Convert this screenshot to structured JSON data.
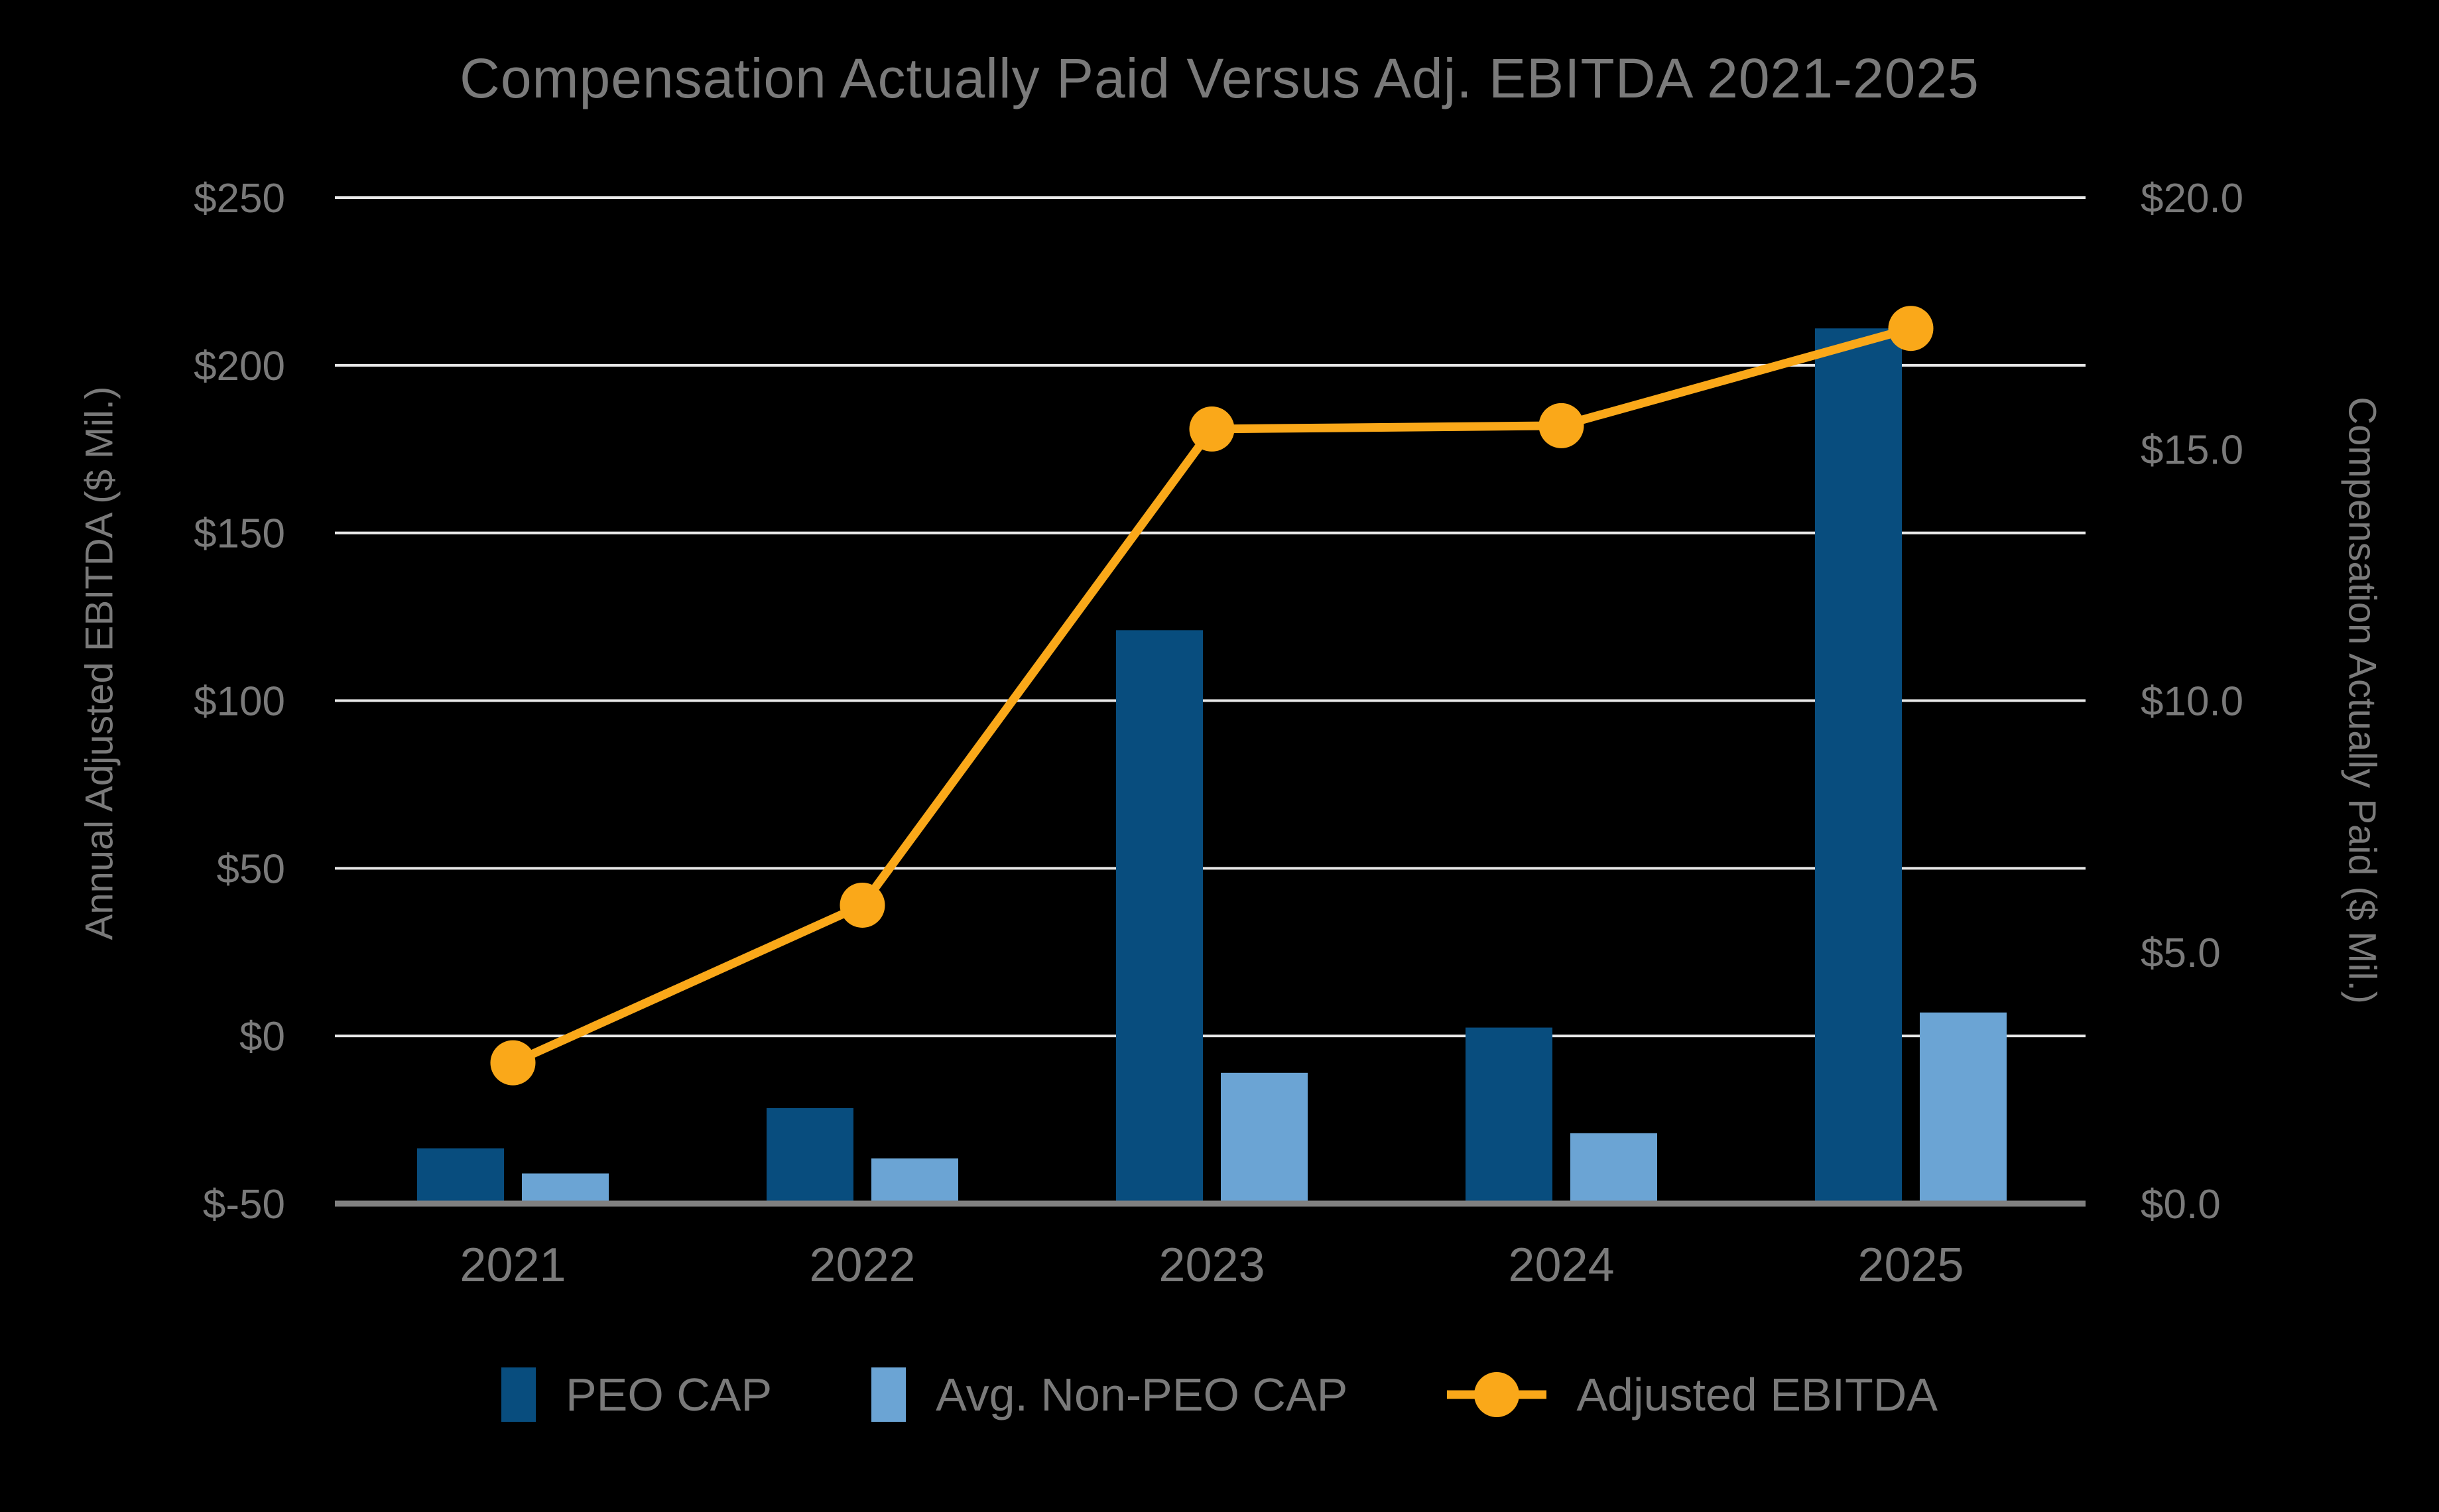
{
  "title": "Compensation Actually Paid Versus Adj. EBITDA 2021-2025",
  "axes": {
    "left_title": "Annual Adjusted EBITDA ($ Mil.)",
    "right_title": "Compensation Actually Paid ($ Mil.)",
    "left_tick_labels": [
      "$250",
      "$200",
      "$150",
      "$100",
      "$50",
      "$0",
      "$-50"
    ],
    "right_tick_labels": [
      "$20.0",
      "$15.0",
      "$10.0",
      "$5.0",
      "$0.0"
    ]
  },
  "legend": {
    "items": [
      {
        "label": "PEO CAP",
        "swatch": "dark-blue-square"
      },
      {
        "label": "Avg. Non-PEO CAP",
        "swatch": "light-blue-square"
      },
      {
        "label": "Adjusted EBITDA",
        "swatch": "orange-line-circle"
      }
    ]
  },
  "colors": {
    "peo_cap": "#084D7E",
    "non_peo_cap": "#6BA4D4",
    "adjusted_ebitda": "#FAA819",
    "gridline": "#E8E8E8",
    "axis_line": "#808080",
    "text": "#7A7A7A",
    "background": "#000000"
  },
  "chart_data": {
    "type": "bar",
    "subtype": "grouped-bars-with-line",
    "title": "Compensation Actually Paid Versus Adj. EBITDA 2021-2025",
    "categories": [
      "2021",
      "2022",
      "2023",
      "2024",
      "2025"
    ],
    "series": [
      {
        "name": "PEO CAP",
        "type": "bar",
        "axis": "right",
        "color": "#084D7E",
        "values": [
          1.1,
          1.9,
          11.4,
          3.5,
          17.4
        ]
      },
      {
        "name": "Avg. Non-PEO CAP",
        "type": "bar",
        "axis": "right",
        "color": "#6BA4D4",
        "values": [
          0.6,
          0.9,
          2.6,
          1.4,
          3.8
        ]
      },
      {
        "name": "Adjusted EBITDA",
        "type": "line",
        "axis": "left",
        "color": "#FAA819",
        "values": [
          -8,
          39,
          181,
          182,
          211
        ]
      }
    ],
    "left_axis": {
      "label": "Annual Adjusted EBITDA ($ Mil.)",
      "min": -50,
      "max": 250,
      "tick_step": 50
    },
    "right_axis": {
      "label": "Compensation Actually Paid ($ Mil.)",
      "min": 0,
      "max": 20,
      "tick_step": 5
    },
    "grid": true,
    "legend_position": "bottom"
  }
}
